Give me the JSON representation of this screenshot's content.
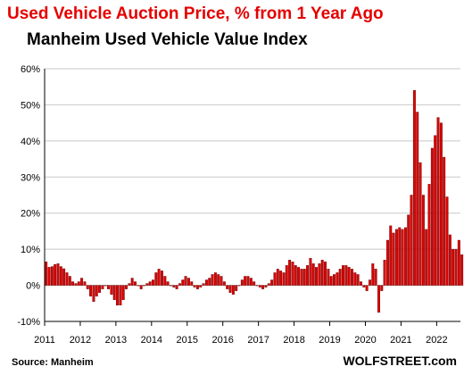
{
  "header": {
    "title": "Used Vehicle Auction Price, % from 1 Year Ago",
    "subtitle": "Manheim Used Vehicle Value Index"
  },
  "footer": {
    "source": "Source: Manheim",
    "brand": "WOLFSTREET.com"
  },
  "colors": {
    "bar": "#e00000",
    "bar_edge": "#5a0000",
    "grid": "#c8c8c8",
    "title": "#e60000"
  },
  "chart_data": {
    "type": "bar",
    "title": "Used Vehicle Auction Price, % from 1 Year Ago",
    "subtitle": "Manheim Used Vehicle Value Index",
    "xlabel": "",
    "ylabel": "",
    "ylim": [
      -10,
      60
    ],
    "yticks": [
      -10,
      0,
      10,
      20,
      30,
      40,
      50,
      60
    ],
    "ytick_labels": [
      "-10%",
      "0%",
      "10%",
      "20%",
      "30%",
      "40%",
      "50%",
      "60%"
    ],
    "x_tick_labels": [
      "2011",
      "2012",
      "2013",
      "2014",
      "2015",
      "2016",
      "2017",
      "2018",
      "2019",
      "2020",
      "2021",
      "2022"
    ],
    "start": "2011-01",
    "frequency": "monthly",
    "grid": true,
    "legend": "none",
    "values": [
      6.5,
      5.0,
      5.2,
      5.8,
      6.0,
      5.2,
      4.6,
      3.5,
      2.5,
      1.0,
      0.5,
      1.0,
      2.0,
      1.0,
      -1.0,
      -3.0,
      -4.5,
      -3.0,
      -2.0,
      -1.0,
      0.0,
      -1.0,
      -2.5,
      -4.0,
      -5.5,
      -5.5,
      -4.0,
      -1.0,
      0.5,
      2.0,
      1.0,
      0.0,
      -1.0,
      0.0,
      0.5,
      1.0,
      1.5,
      3.5,
      4.5,
      4.0,
      2.5,
      1.0,
      0.0,
      -0.5,
      -1.0,
      0.5,
      1.5,
      2.5,
      2.0,
      1.0,
      -0.5,
      -1.0,
      -0.5,
      0.5,
      1.5,
      2.0,
      3.0,
      3.5,
      3.0,
      2.5,
      1.0,
      -1.0,
      -2.0,
      -2.5,
      -1.5,
      0.0,
      1.5,
      2.5,
      2.5,
      2.0,
      1.0,
      0.0,
      -0.5,
      -1.0,
      -0.5,
      0.5,
      1.5,
      3.5,
      4.5,
      4.0,
      3.5,
      5.5,
      7.0,
      6.5,
      5.5,
      5.0,
      4.5,
      4.5,
      5.5,
      7.5,
      6.0,
      5.0,
      6.0,
      7.0,
      6.5,
      4.5,
      2.5,
      3.0,
      3.5,
      4.5,
      5.5,
      5.5,
      5.0,
      4.5,
      3.5,
      3.0,
      1.0,
      -0.5,
      -1.5,
      1.5,
      6.0,
      4.5,
      -7.5,
      -1.5,
      7.0,
      12.5,
      16.5,
      14.5,
      15.5,
      16.0,
      15.5,
      16.0,
      19.5,
      25.0,
      54.0,
      48.0,
      34.0,
      25.0,
      15.5,
      28.0,
      38.0,
      41.5,
      46.5,
      45.0,
      35.5,
      24.5,
      14.0,
      10.0,
      10.0,
      12.5,
      8.5
    ]
  }
}
